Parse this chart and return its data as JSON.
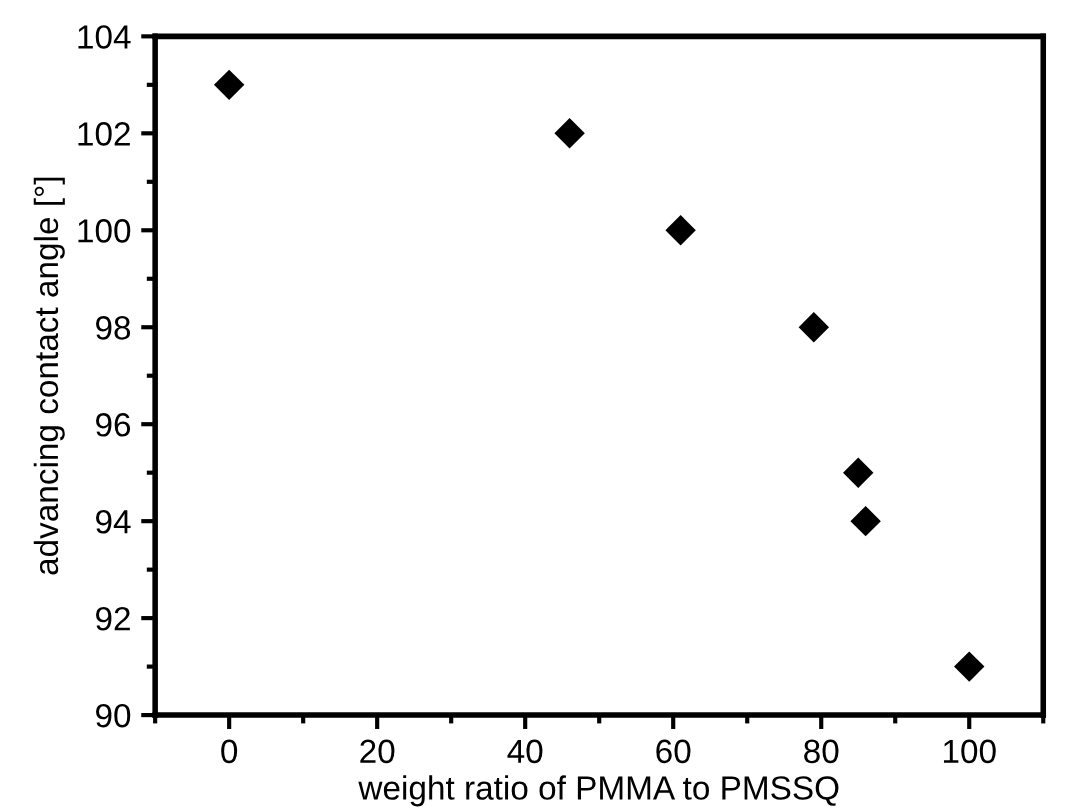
{
  "chart_data": {
    "type": "scatter",
    "xlabel": "weight ratio of PMMA to PMSSQ",
    "ylabel": "advancing contact angle [°]",
    "x": [
      0,
      46,
      61,
      79,
      85,
      86,
      100
    ],
    "series": [
      {
        "color": "#000000",
        "values": [
          103,
          102,
          100,
          98,
          95,
          94,
          91
        ]
      }
    ],
    "marker": "diamond",
    "xlim": [
      -10,
      110
    ],
    "xticks": [
      0,
      20,
      40,
      60,
      80,
      100
    ],
    "ylim": [
      90,
      104
    ],
    "yticks": [
      90,
      92,
      94,
      96,
      98,
      100,
      102,
      104
    ],
    "grid": false,
    "legend": false
  }
}
